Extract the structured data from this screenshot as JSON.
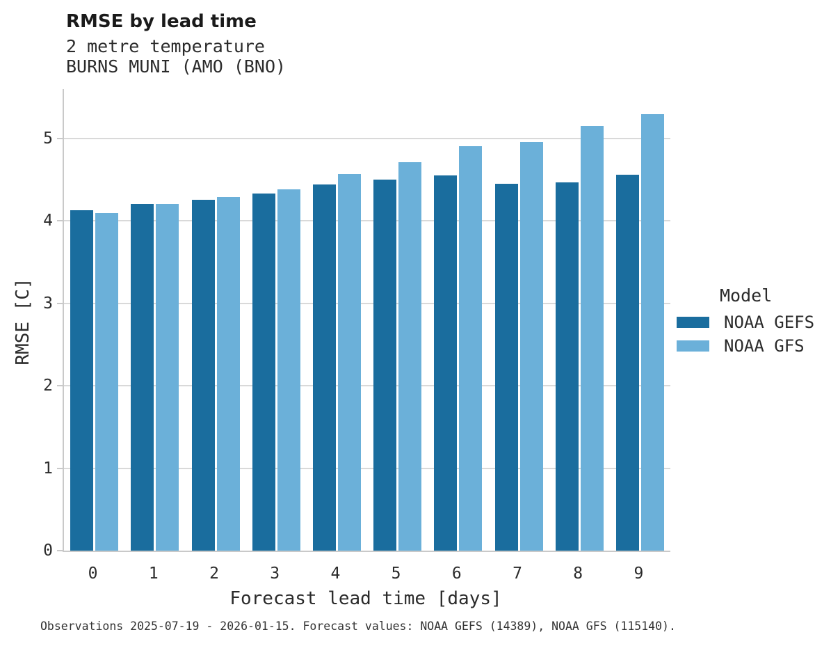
{
  "header": {
    "title": "RMSE by lead time",
    "subtitle_line1": "2 metre temperature",
    "subtitle_line2": "BURNS MUNI (AMO (BNO)"
  },
  "chart_data": {
    "type": "bar",
    "title": "RMSE by lead time",
    "subtitle": [
      "2 metre temperature",
      "BURNS MUNI (AMO (BNO)"
    ],
    "categories": [
      "0",
      "1",
      "2",
      "3",
      "4",
      "5",
      "6",
      "7",
      "8",
      "9"
    ],
    "series": [
      {
        "name": "NOAA GEFS",
        "color": "#1a6d9e",
        "values": [
          4.13,
          4.21,
          4.26,
          4.33,
          4.44,
          4.5,
          4.55,
          4.45,
          4.47,
          4.56
        ]
      },
      {
        "name": "NOAA GFS",
        "color": "#6bb0d9",
        "values": [
          4.1,
          4.21,
          4.29,
          4.38,
          4.57,
          4.71,
          4.91,
          4.96,
          5.15,
          5.3
        ]
      }
    ],
    "xlabel": "Forecast lead time [days]",
    "ylabel": "RMSE [C]",
    "ylim": [
      0,
      5.6
    ],
    "yticks": [
      0,
      1,
      2,
      3,
      4,
      5
    ],
    "grid": "horizontal",
    "legend_title": "Model",
    "legend_position": "right"
  },
  "legend": {
    "title": "Model",
    "entries": [
      {
        "label": "NOAA GEFS",
        "color": "#1a6d9e"
      },
      {
        "label": "NOAA GFS",
        "color": "#6bb0d9"
      }
    ]
  },
  "footer": {
    "text": "Observations 2025-07-19 - 2026-01-15. Forecast values: NOAA GEFS (14389), NOAA GFS (115140)."
  },
  "colors": {
    "gefs_dark_blue": "#1a6d9e",
    "gfs_light_blue": "#6bb0d9",
    "gridline": "#d9d9d9",
    "spine": "#c9c9c9",
    "text": "#2b2b2b",
    "background": "#ffffff"
  }
}
